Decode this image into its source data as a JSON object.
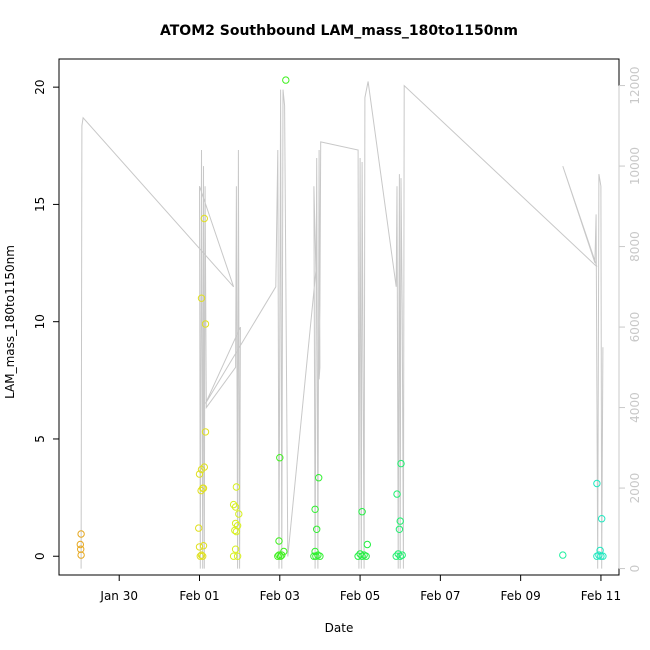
{
  "chart_data": {
    "type": "scatter",
    "title": "ATOM2 Southbound LAM_mass_180to1150nm",
    "xlabel": "Date",
    "ylabel": "LAM_mass_180to1150nm",
    "x_ticks": [
      "Jan 30",
      "Feb 01",
      "Feb 03",
      "Feb 05",
      "Feb 07",
      "Feb 09",
      "Feb 11"
    ],
    "x_tick_days": [
      0,
      2,
      4,
      6,
      8,
      10,
      12
    ],
    "xlim_days": [
      -1.5,
      12.45
    ],
    "y_ticks": [
      0,
      5,
      10,
      15,
      20
    ],
    "ylim": [
      -0.8,
      21.2
    ],
    "y2_ticks": [
      0,
      2000,
      4000,
      6000,
      8000,
      10000,
      12000
    ],
    "y2lim": [
      -160,
      12660
    ],
    "grid": false,
    "colors": {
      "altitude_line": "#c8c8c8",
      "axis": "#000000",
      "right_axis": "#c8c8c8"
    },
    "series": [
      {
        "values": [
          {
            "x": -0.95,
            "y": 0.95,
            "color": "#e6a820"
          },
          {
            "x": -0.97,
            "y": 0.5,
            "color": "#e6a820"
          },
          {
            "x": -0.96,
            "y": 0.3,
            "color": "#e6a820"
          },
          {
            "x": -0.95,
            "y": 0.05,
            "color": "#e6a820"
          },
          {
            "x": 2.0,
            "y": 0.4,
            "color": "#e0e020"
          },
          {
            "x": 2.02,
            "y": 0.0,
            "color": "#e0e020"
          },
          {
            "x": 2.05,
            "y": 0.05,
            "color": "#e0e020"
          },
          {
            "x": 2.08,
            "y": 0.0,
            "color": "#e0e020"
          },
          {
            "x": 2.1,
            "y": 0.45,
            "color": "#e0e020"
          },
          {
            "x": 1.98,
            "y": 1.2,
            "color": "#e0e020"
          },
          {
            "x": 2.0,
            "y": 3.5,
            "color": "#e0e020"
          },
          {
            "x": 2.05,
            "y": 3.7,
            "color": "#e0e020"
          },
          {
            "x": 2.12,
            "y": 3.8,
            "color": "#e0e020"
          },
          {
            "x": 2.08,
            "y": 2.9,
            "color": "#e0e020"
          },
          {
            "x": 2.04,
            "y": 2.8,
            "color": "#e0e020"
          },
          {
            "x": 2.1,
            "y": 2.9,
            "color": "#e0e020"
          },
          {
            "x": 2.15,
            "y": 5.3,
            "color": "#e0e020"
          },
          {
            "x": 2.05,
            "y": 11.0,
            "color": "#e0e020"
          },
          {
            "x": 2.15,
            "y": 9.9,
            "color": "#e0e020"
          },
          {
            "x": 2.12,
            "y": 14.4,
            "color": "#e0e020"
          },
          {
            "x": 2.85,
            "y": 0.0,
            "color": "#d8f020"
          },
          {
            "x": 2.95,
            "y": 0.0,
            "color": "#d8f020"
          },
          {
            "x": 2.9,
            "y": 0.3,
            "color": "#d8f020"
          },
          {
            "x": 2.88,
            "y": 1.1,
            "color": "#d8f020"
          },
          {
            "x": 2.95,
            "y": 1.3,
            "color": "#d8f020"
          },
          {
            "x": 2.92,
            "y": 1.05,
            "color": "#d8f020"
          },
          {
            "x": 2.9,
            "y": 1.4,
            "color": "#d8f020"
          },
          {
            "x": 2.85,
            "y": 2.2,
            "color": "#d8f020"
          },
          {
            "x": 2.9,
            "y": 2.1,
            "color": "#d8f020"
          },
          {
            "x": 2.92,
            "y": 2.95,
            "color": "#d8f020"
          },
          {
            "x": 2.98,
            "y": 1.8,
            "color": "#d8f020"
          },
          {
            "x": 3.95,
            "y": 0.0,
            "color": "#40f020"
          },
          {
            "x": 3.98,
            "y": 0.05,
            "color": "#40f020"
          },
          {
            "x": 4.02,
            "y": 0.0,
            "color": "#40f020"
          },
          {
            "x": 4.05,
            "y": 0.05,
            "color": "#40f020"
          },
          {
            "x": 4.1,
            "y": 0.2,
            "color": "#40f020"
          },
          {
            "x": 3.98,
            "y": 0.65,
            "color": "#40f020"
          },
          {
            "x": 4.0,
            "y": 4.2,
            "color": "#40f020"
          },
          {
            "x": 4.15,
            "y": 20.3,
            "color": "#40f020"
          },
          {
            "x": 4.85,
            "y": 0.0,
            "color": "#30f030"
          },
          {
            "x": 4.9,
            "y": 0.0,
            "color": "#30f030"
          },
          {
            "x": 4.95,
            "y": 0.05,
            "color": "#30f030"
          },
          {
            "x": 5.0,
            "y": 0.0,
            "color": "#30f030"
          },
          {
            "x": 4.88,
            "y": 0.2,
            "color": "#30f030"
          },
          {
            "x": 4.92,
            "y": 1.15,
            "color": "#30f030"
          },
          {
            "x": 4.88,
            "y": 2.0,
            "color": "#30f030"
          },
          {
            "x": 4.97,
            "y": 3.35,
            "color": "#30f030"
          },
          {
            "x": 5.95,
            "y": 0.0,
            "color": "#20f040"
          },
          {
            "x": 6.0,
            "y": 0.1,
            "color": "#20f040"
          },
          {
            "x": 6.05,
            "y": 0.0,
            "color": "#20f040"
          },
          {
            "x": 6.1,
            "y": 0.05,
            "color": "#20f040"
          },
          {
            "x": 6.15,
            "y": 0.0,
            "color": "#20f040"
          },
          {
            "x": 6.18,
            "y": 0.5,
            "color": "#20f040"
          },
          {
            "x": 6.05,
            "y": 1.9,
            "color": "#20f040"
          },
          {
            "x": 6.9,
            "y": 0.0,
            "color": "#20f070"
          },
          {
            "x": 6.95,
            "y": 0.1,
            "color": "#20f070"
          },
          {
            "x": 7.0,
            "y": 0.0,
            "color": "#20f070"
          },
          {
            "x": 7.05,
            "y": 0.05,
            "color": "#20f070"
          },
          {
            "x": 6.98,
            "y": 1.15,
            "color": "#20f070"
          },
          {
            "x": 7.0,
            "y": 1.5,
            "color": "#20f070"
          },
          {
            "x": 6.92,
            "y": 2.65,
            "color": "#20f070"
          },
          {
            "x": 7.02,
            "y": 3.95,
            "color": "#20f070"
          },
          {
            "x": 11.05,
            "y": 0.05,
            "color": "#20f0a0"
          },
          {
            "x": 11.9,
            "y": 0.0,
            "color": "#20e8c0"
          },
          {
            "x": 11.95,
            "y": 0.05,
            "color": "#20e8c0"
          },
          {
            "x": 12.0,
            "y": 0.0,
            "color": "#20e8c0"
          },
          {
            "x": 12.05,
            "y": 0.0,
            "color": "#20e8c0"
          },
          {
            "x": 11.98,
            "y": 0.25,
            "color": "#20e8c0"
          },
          {
            "x": 12.02,
            "y": 1.6,
            "color": "#20e8c0"
          },
          {
            "x": 11.9,
            "y": 3.1,
            "color": "#20e8c0"
          }
        ]
      },
      {
        "axis": "right",
        "values": [
          [
            -0.95,
            0
          ],
          [
            -0.93,
            11000
          ],
          [
            -0.9,
            11200
          ],
          [
            2.85,
            7000
          ],
          [
            2.0,
            9500
          ],
          [
            2.02,
            0
          ],
          [
            2.05,
            10400
          ],
          [
            2.08,
            0
          ],
          [
            2.1,
            10000
          ],
          [
            2.12,
            0
          ],
          [
            2.14,
            9500
          ],
          [
            2.17,
            4000
          ],
          [
            2.9,
            5000
          ],
          [
            2.92,
            9500
          ],
          [
            2.95,
            0
          ],
          [
            2.97,
            10400
          ],
          [
            3.0,
            0
          ],
          [
            3.02,
            6000
          ],
          [
            2.15,
            4100
          ],
          [
            3.9,
            7000
          ],
          [
            3.95,
            10400
          ],
          [
            3.98,
            0
          ],
          [
            4.02,
            11900
          ],
          [
            4.05,
            0
          ],
          [
            4.08,
            11900
          ],
          [
            4.12,
            11500
          ],
          [
            4.2,
            300
          ],
          [
            4.9,
            7400
          ],
          [
            4.85,
            9500
          ],
          [
            4.88,
            0
          ],
          [
            4.92,
            10200
          ],
          [
            4.95,
            0
          ],
          [
            4.98,
            10400
          ],
          [
            5.0,
            5000
          ],
          [
            4.98,
            4700
          ],
          [
            5.0,
            6500
          ],
          [
            5.02,
            10600
          ],
          [
            5.95,
            10400
          ],
          [
            5.97,
            0
          ],
          [
            6.0,
            10200
          ],
          [
            6.03,
            0
          ],
          [
            6.05,
            10100
          ],
          [
            6.1,
            0
          ],
          [
            6.12,
            11700
          ],
          [
            6.2,
            12100
          ],
          [
            6.9,
            7000
          ],
          [
            6.92,
            9500
          ],
          [
            6.95,
            0
          ],
          [
            6.98,
            9800
          ],
          [
            7.0,
            0
          ],
          [
            7.02,
            9700
          ],
          [
            7.05,
            6400
          ],
          [
            7.08,
            0
          ],
          [
            7.1,
            12000
          ],
          [
            11.9,
            7500
          ],
          [
            11.05,
            10000
          ],
          [
            11.85,
            7600
          ],
          [
            11.88,
            8800
          ],
          [
            11.92,
            0
          ],
          [
            11.95,
            9800
          ],
          [
            12.0,
            9500
          ],
          [
            12.02,
            0
          ],
          [
            12.05,
            5500
          ]
        ]
      }
    ]
  }
}
